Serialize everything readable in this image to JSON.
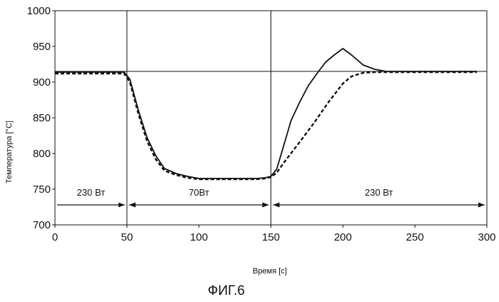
{
  "chart_data": {
    "type": "line",
    "title": "",
    "caption": "ФИГ.6",
    "xlabel": "Время [с]",
    "ylabel": "Температура [°C]",
    "xlim": [
      0,
      300
    ],
    "ylim": [
      700,
      1000
    ],
    "x_ticks": [
      0,
      50,
      100,
      150,
      200,
      250,
      300
    ],
    "y_ticks": [
      700,
      750,
      800,
      850,
      900,
      950,
      1000
    ],
    "grid": false,
    "setpoint": 915,
    "phase_boundaries": [
      50,
      150
    ],
    "power_phases": [
      {
        "label": "230 Вт",
        "start": 0,
        "end": 50
      },
      {
        "label": "70Вт",
        "start": 50,
        "end": 150
      },
      {
        "label": "230 Вт",
        "start": 150,
        "end": 300
      }
    ],
    "series": [
      {
        "style": "solid",
        "x": [
          0,
          20,
          40,
          48,
          52,
          58,
          64,
          70,
          76,
          84,
          92,
          100,
          110,
          120,
          130,
          140,
          146,
          150,
          154,
          158,
          164,
          170,
          176,
          182,
          188,
          194,
          200,
          206,
          214,
          222,
          230,
          240,
          260,
          280,
          293
        ],
        "y": [
          914,
          914,
          914,
          914,
          904,
          860,
          822,
          797,
          779,
          772,
          768,
          765,
          765,
          765,
          765,
          765,
          766,
          768,
          778,
          805,
          846,
          872,
          895,
          912,
          928,
          938,
          947,
          938,
          924,
          918,
          915,
          915,
          915,
          915,
          915
        ]
      },
      {
        "style": "dashed",
        "x": [
          0,
          20,
          40,
          48,
          52,
          58,
          64,
          70,
          76,
          84,
          92,
          100,
          110,
          120,
          130,
          140,
          146,
          150,
          154,
          160,
          170,
          180,
          190,
          200,
          206,
          214,
          222,
          230,
          240,
          260,
          280,
          293
        ],
        "y": [
          912,
          912,
          912,
          912,
          900,
          855,
          817,
          792,
          776,
          770,
          766,
          764,
          764,
          764,
          764,
          764,
          765,
          767,
          773,
          790,
          816,
          843,
          872,
          898,
          908,
          913,
          914,
          914,
          914,
          914,
          914,
          914
        ]
      }
    ]
  }
}
